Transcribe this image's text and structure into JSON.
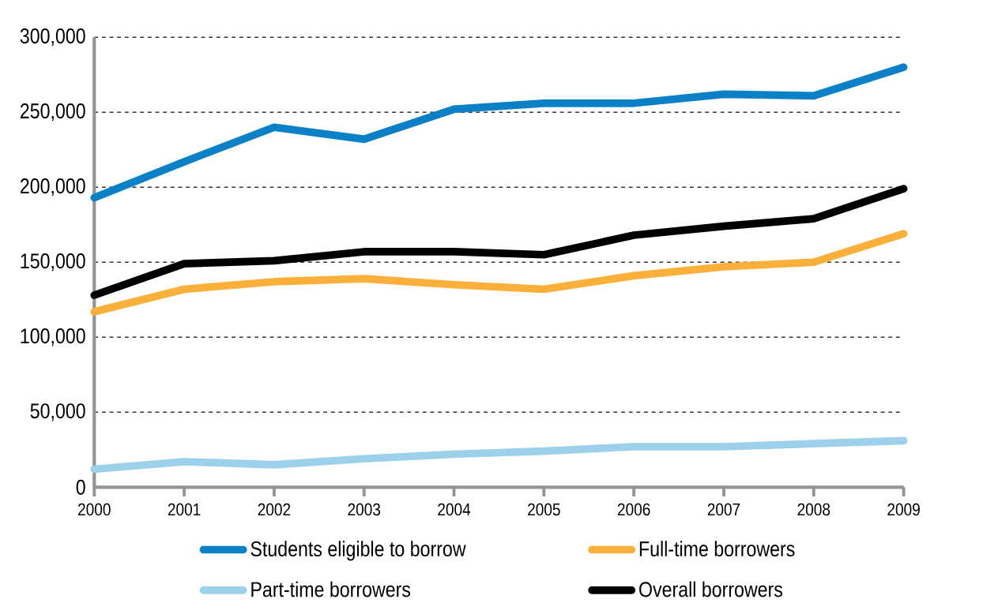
{
  "chart_data": {
    "type": "line",
    "categories": [
      "2000",
      "2001",
      "2002",
      "2003",
      "2004",
      "2005",
      "2006",
      "2007",
      "2008",
      "2009"
    ],
    "series": [
      {
        "name": "Students eligible to borrow",
        "color": "#0a80c6",
        "values": [
          193000,
          217000,
          240000,
          232000,
          252000,
          256000,
          256000,
          262000,
          261000,
          280000
        ]
      },
      {
        "name": "Full-time borrowers",
        "color": "#fbb03b",
        "values": [
          117000,
          132000,
          137000,
          139000,
          135000,
          132000,
          141000,
          147000,
          150000,
          169000
        ]
      },
      {
        "name": "Part-time borrowers",
        "color": "#9dd0ea",
        "values": [
          12000,
          17000,
          15000,
          19000,
          22000,
          24000,
          27000,
          27000,
          29000,
          31000
        ]
      },
      {
        "name": "Overall borrowers",
        "color": "#000000",
        "values": [
          128000,
          149000,
          151000,
          157000,
          157000,
          155000,
          168000,
          174000,
          179000,
          199000
        ]
      }
    ],
    "ylim": [
      0,
      300000
    ],
    "yticks": [
      0,
      {
        "value": 50000,
        "label": "50,000"
      },
      {
        "value": 100000,
        "label": "100,000"
      },
      {
        "value": 150000,
        "label": "150,000"
      },
      {
        "value": 200000,
        "label": "200,000"
      },
      {
        "value": 250000,
        "label": "250,000"
      },
      {
        "value": 300000,
        "label": "300,000"
      }
    ],
    "grid": "y",
    "legend": "bottom"
  }
}
